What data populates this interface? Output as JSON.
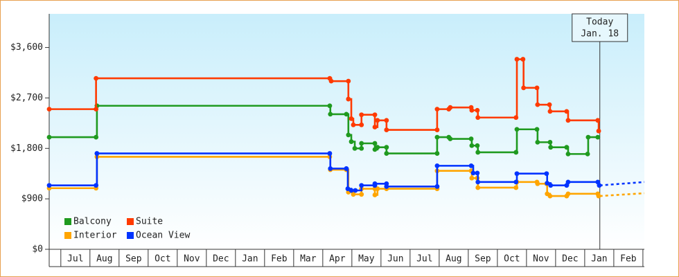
{
  "chart_data": {
    "type": "step-line",
    "categories": [
      null,
      "Jul",
      "Aug",
      "Sep",
      "Oct",
      "Nov",
      "Dec",
      "Jan",
      "Feb",
      "Mar",
      "Apr",
      "May",
      "Jun",
      "Jul",
      "Aug",
      "Sep",
      "Oct",
      "Nov",
      "Dec",
      "Jan",
      "Feb"
    ],
    "xlim": [
      -0.4,
      20.05
    ],
    "ylim": [
      0,
      4200
    ],
    "yticks": [
      {
        "value": 0,
        "label": "$0"
      },
      {
        "value": 900,
        "label": "$900"
      },
      {
        "value": 1800,
        "label": "$1,800"
      },
      {
        "value": 2700,
        "label": "$2,700"
      },
      {
        "value": 3600,
        "label": "$3,600"
      }
    ],
    "legend": "bottom-left",
    "annotation": {
      "x": 18.52,
      "lines": [
        "Today",
        "Jan. 18"
      ]
    },
    "series": [
      {
        "name": "Balcony",
        "color": "#1f9a1f",
        "x": [
          -0.4,
          1.21,
          1.24,
          9.24,
          9.26,
          9.81,
          9.88,
          9.98,
          10.1,
          10.33,
          10.33,
          10.79,
          10.79,
          10.88,
          11.19,
          11.19,
          12.93,
          12.93,
          13.33,
          13.38,
          14.1,
          14.12,
          14.31,
          14.33,
          15.64,
          15.67,
          16.36,
          16.38,
          16.81,
          16.83,
          17.38,
          17.43,
          18.1,
          18.12,
          18.45
        ],
        "values": [
          2000,
          2000,
          2560,
          2560,
          2410,
          2410,
          2040,
          1920,
          1800,
          1800,
          1890,
          1890,
          1780,
          1820,
          1820,
          1710,
          1710,
          2000,
          2000,
          1970,
          1970,
          1850,
          1850,
          1730,
          1730,
          2140,
          2140,
          1910,
          1910,
          1820,
          1820,
          1700,
          1700,
          2000,
          2000
        ]
      },
      {
        "name": "Suite",
        "color": "#ff3a00",
        "x": [
          -0.4,
          1.21,
          1.21,
          9.24,
          9.29,
          9.88,
          9.88,
          9.98,
          10.05,
          10.33,
          10.33,
          10.79,
          10.79,
          10.88,
          11.19,
          11.19,
          12.93,
          12.93,
          13.33,
          13.38,
          14.1,
          14.12,
          14.31,
          14.33,
          15.64,
          15.67,
          15.88,
          15.9,
          16.36,
          16.38,
          16.79,
          16.81,
          17.38,
          17.43,
          18.45,
          18.48
        ],
        "values": [
          2500,
          2500,
          3050,
          3050,
          3000,
          3000,
          2680,
          2330,
          2220,
          2220,
          2400,
          2400,
          2180,
          2300,
          2300,
          2130,
          2130,
          2500,
          2500,
          2530,
          2530,
          2480,
          2480,
          2350,
          2350,
          3390,
          3390,
          2880,
          2880,
          2580,
          2580,
          2460,
          2460,
          2300,
          2300,
          2110
        ]
      },
      {
        "name": "Interior",
        "color": "#ffa500",
        "x": [
          -0.4,
          1.21,
          1.24,
          9.24,
          9.26,
          9.81,
          9.88,
          10.05,
          10.33,
          10.33,
          10.79,
          10.79,
          10.88,
          11.19,
          12.93,
          12.93,
          14.1,
          14.12,
          14.31,
          14.33,
          15.64,
          15.67,
          16.36,
          16.38,
          16.69,
          16.71,
          16.81,
          17.38,
          17.43,
          18.45,
          18.48
        ],
        "values": [
          1090,
          1090,
          1650,
          1650,
          1420,
          1420,
          1020,
          980,
          980,
          1080,
          1080,
          970,
          1080,
          1080,
          1080,
          1400,
          1400,
          1270,
          1270,
          1100,
          1100,
          1200,
          1200,
          1170,
          1170,
          990,
          950,
          950,
          990,
          990,
          950
        ],
        "projection": {
          "x": [
            18.52,
            20.05
          ],
          "values": [
            950,
            1000
          ]
        }
      },
      {
        "name": "Ocean View",
        "color": "#0033ff",
        "x": [
          -0.4,
          1.21,
          1.24,
          9.24,
          9.26,
          9.81,
          9.86,
          9.98,
          10.12,
          10.33,
          10.79,
          10.79,
          11.19,
          11.19,
          12.93,
          12.93,
          14.1,
          14.17,
          14.31,
          14.33,
          15.64,
          15.67,
          16.69,
          16.71,
          16.83,
          17.38,
          17.43,
          18.45,
          18.5
        ],
        "values": [
          1140,
          1140,
          1710,
          1710,
          1440,
          1440,
          1080,
          1050,
          1050,
          1140,
          1140,
          1170,
          1170,
          1120,
          1120,
          1490,
          1490,
          1360,
          1360,
          1200,
          1200,
          1350,
          1350,
          1180,
          1140,
          1140,
          1200,
          1200,
          1140
        ],
        "projection": {
          "x": [
            18.52,
            20.05
          ],
          "values": [
            1140,
            1200
          ]
        }
      }
    ]
  }
}
